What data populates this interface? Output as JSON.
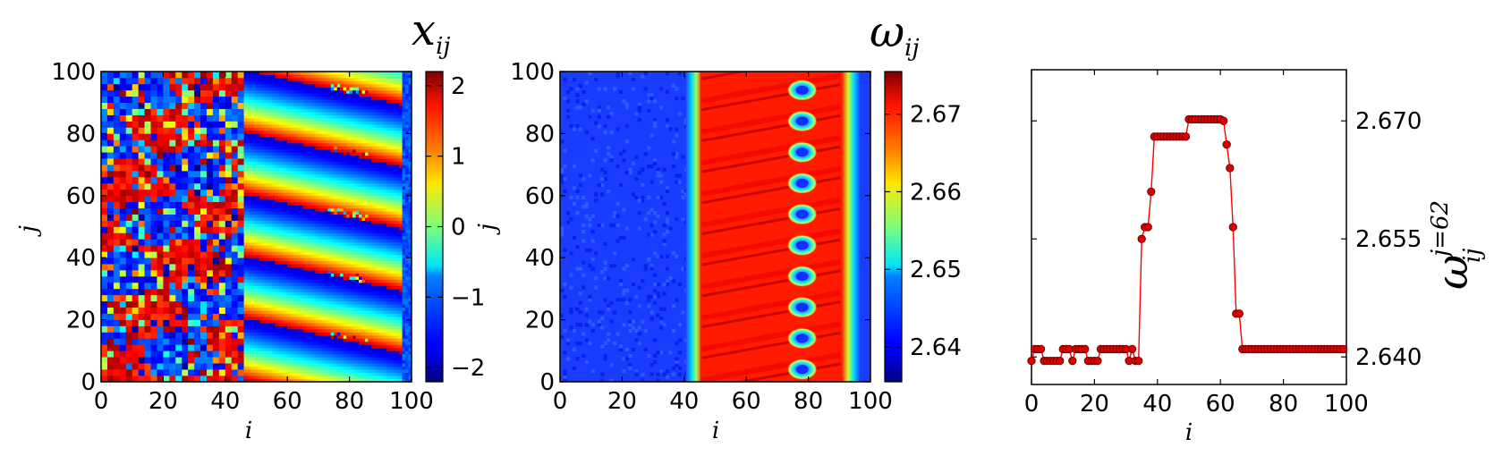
{
  "panels": [
    {
      "id": "x",
      "title_main": "x",
      "title_sub": "ij",
      "xlabel": "i",
      "ylabel": "j",
      "x_ticks": [
        "0",
        "20",
        "40",
        "60",
        "80",
        "100"
      ],
      "y_ticks": [
        "0",
        "20",
        "40",
        "60",
        "80",
        "100"
      ],
      "colorbar_ticks": [
        "−2",
        "−1",
        "0",
        "1",
        "2"
      ],
      "colorbar_label": "j"
    },
    {
      "id": "omega",
      "title_main": "ω",
      "title_sub": "ij",
      "xlabel": "i",
      "x_ticks": [
        "0",
        "20",
        "40",
        "60",
        "80",
        "100"
      ],
      "y_ticks": [
        "0",
        "20",
        "40",
        "60",
        "80",
        "100"
      ],
      "colorbar_ticks": [
        "2.64",
        "2.65",
        "2.66",
        "2.67"
      ]
    },
    {
      "id": "slice",
      "xlabel": "i",
      "ylabel_main": "ω",
      "ylabel_sup": "j=62",
      "ylabel_sub": "ij",
      "x_ticks": [
        "0",
        "20",
        "40",
        "60",
        "80",
        "100"
      ],
      "y_ticks": [
        "2.640",
        "2.655",
        "2.670"
      ]
    }
  ],
  "colors": {
    "line": "#ff0000",
    "marker_fill": "#dd0000",
    "marker_edge": "#660000"
  },
  "chart_data": [
    {
      "type": "heatmap",
      "title": "x_ij",
      "xlabel": "i",
      "ylabel": "j",
      "xlim": [
        0,
        100
      ],
      "ylim": [
        0,
        100
      ],
      "colorbar": {
        "min": -2.2,
        "max": 2.2,
        "ticks": [
          -2,
          -1,
          0,
          1,
          2
        ],
        "colormap": "jet"
      },
      "description_values": {
        "left_region": "disordered phases",
        "right_region": "traveling wave stripes, 6 bands"
      }
    },
    {
      "type": "heatmap",
      "title": "ω_ij",
      "xlabel": "i",
      "xlim": [
        0,
        100
      ],
      "ylim": [
        0,
        100
      ],
      "colorbar": {
        "min": 2.6355,
        "max": 2.6755,
        "ticks": [
          2.64,
          2.65,
          2.66,
          2.67
        ],
        "colormap": "jet"
      },
      "coherent_band_i": [
        44,
        92
      ],
      "spot_i": 78,
      "spot_j": [
        4,
        14,
        24,
        34,
        44,
        54,
        64,
        74,
        84,
        94
      ]
    },
    {
      "type": "line",
      "title": "",
      "xlabel": "i",
      "ylabel": "ω_ij^(j=62)",
      "xlim": [
        0,
        100
      ],
      "ylim": [
        2.6365,
        2.6765
      ],
      "y_ticks": [
        2.64,
        2.655,
        2.67
      ],
      "x": [
        0,
        1,
        2,
        3,
        4,
        5,
        6,
        7,
        8,
        9,
        10,
        11,
        12,
        13,
        14,
        15,
        16,
        17,
        18,
        19,
        20,
        21,
        22,
        23,
        24,
        25,
        26,
        27,
        28,
        29,
        30,
        31,
        32,
        33,
        34,
        35,
        36,
        37,
        38,
        39,
        40,
        41,
        42,
        43,
        44,
        45,
        46,
        47,
        48,
        49,
        50,
        51,
        52,
        53,
        54,
        55,
        56,
        57,
        58,
        59,
        60,
        61,
        62,
        63,
        64,
        65,
        66,
        67,
        68,
        69,
        70,
        71,
        72,
        73,
        74,
        75,
        76,
        77,
        78,
        79,
        80,
        81,
        82,
        83,
        84,
        85,
        86,
        87,
        88,
        89,
        90,
        91,
        92,
        93,
        94,
        95,
        96,
        97,
        98,
        99
      ],
      "values": [
        2.6395,
        2.641,
        2.641,
        2.641,
        2.6395,
        2.6395,
        2.6395,
        2.6395,
        2.6395,
        2.6395,
        2.641,
        2.641,
        2.641,
        2.6395,
        2.641,
        2.641,
        2.641,
        2.641,
        2.6395,
        2.6395,
        2.6395,
        2.6395,
        2.641,
        2.641,
        2.641,
        2.641,
        2.641,
        2.641,
        2.641,
        2.641,
        2.641,
        2.6395,
        2.641,
        2.6395,
        2.6395,
        2.655,
        2.6565,
        2.6565,
        2.661,
        2.668,
        2.668,
        2.668,
        2.668,
        2.668,
        2.668,
        2.668,
        2.668,
        2.668,
        2.668,
        2.668,
        2.6702,
        2.6702,
        2.6702,
        2.6702,
        2.6702,
        2.6702,
        2.6702,
        2.6702,
        2.6702,
        2.6702,
        2.6702,
        2.67,
        2.667,
        2.664,
        2.6565,
        2.6455,
        2.6455,
        2.641,
        2.641,
        2.641,
        2.641,
        2.641,
        2.641,
        2.641,
        2.641,
        2.641,
        2.641,
        2.641,
        2.641,
        2.641,
        2.641,
        2.641,
        2.641,
        2.641,
        2.641,
        2.641,
        2.641,
        2.641,
        2.641,
        2.641,
        2.641,
        2.641,
        2.641,
        2.641,
        2.641,
        2.641,
        2.641,
        2.641,
        2.641,
        2.641
      ]
    }
  ]
}
